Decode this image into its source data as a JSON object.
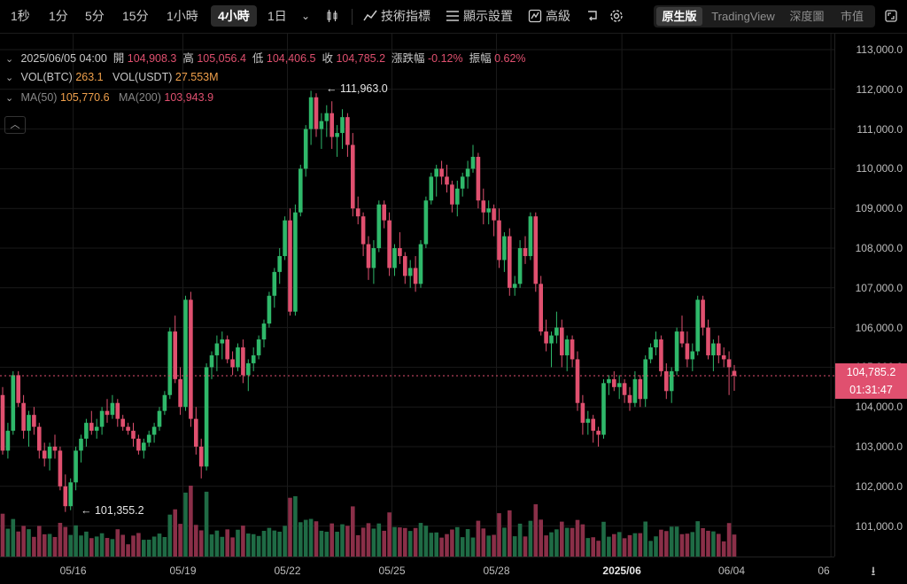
{
  "toolbar": {
    "intervals": [
      "1秒",
      "1分",
      "5分",
      "15分",
      "1小時",
      "4小時",
      "1日"
    ],
    "active_interval": "4小時",
    "indicators_label": "技術指標",
    "display_label": "顯示設置",
    "advanced_label": "高級",
    "views": [
      "原生版",
      "TradingView",
      "深度圖",
      "市值"
    ],
    "active_view": "原生版"
  },
  "legend": {
    "date": "2025/06/05 04:00",
    "open_label": "開",
    "open": "104,908.3",
    "high_label": "高",
    "high": "105,056.4",
    "low_label": "低",
    "low": "104,406.5",
    "close_label": "收",
    "close": "104,785.2",
    "change_label": "漲跌幅",
    "change": "-0.12%",
    "amplitude_label": "振幅",
    "amplitude": "0.62%",
    "vol_btc_label": "VOL(BTC)",
    "vol_btc": "263.1",
    "vol_usdt_label": "VOL(USDT)",
    "vol_usdt": "27.553M",
    "ma50_label": "MA(50)",
    "ma50": "105,770.6",
    "ma200_label": "MA(200)",
    "ma200": "103,943.9"
  },
  "annotations": {
    "high_marker": "111,963.0",
    "low_marker": "101,355.2"
  },
  "current_price": {
    "price": "104,785.2",
    "countdown": "01:31:47"
  },
  "colors": {
    "up": "#2fb86a",
    "down": "#e0506f",
    "background": "#000000",
    "grid": "#1a1a1a"
  },
  "chart_data": {
    "type": "candlestick",
    "y_ticks": [
      "113,000.0",
      "112,000.0",
      "111,000.0",
      "110,000.0",
      "109,000.0",
      "108,000.0",
      "107,000.0",
      "106,000.0",
      "105,000.0",
      "104,000.0",
      "103,000.0",
      "102,000.0",
      "101,000.0"
    ],
    "y_values": [
      113000,
      112000,
      111000,
      110000,
      109000,
      108000,
      107000,
      106000,
      105000,
      104000,
      103000,
      102000,
      101000
    ],
    "x_ticks": [
      {
        "label": "05/16",
        "index": 14,
        "bold": false
      },
      {
        "label": "05/19",
        "index": 35,
        "bold": false
      },
      {
        "label": "05/22",
        "index": 55,
        "bold": false
      },
      {
        "label": "05/25",
        "index": 75,
        "bold": false
      },
      {
        "label": "05/28",
        "index": 95,
        "bold": false
      },
      {
        "label": "2025/06",
        "index": 119,
        "bold": true
      },
      {
        "label": "06/04",
        "index": 140,
        "bold": false
      },
      {
        "label": "06",
        "index": 159,
        "bold": false
      }
    ],
    "ohlc": [
      [
        104300,
        104500,
        102800,
        102900
      ],
      [
        102900,
        103600,
        102700,
        103400
      ],
      [
        103400,
        104900,
        103300,
        104800
      ],
      [
        104800,
        104900,
        104000,
        104100
      ],
      [
        104100,
        104300,
        103200,
        103400
      ],
      [
        103400,
        103900,
        103000,
        103800
      ],
      [
        103800,
        104000,
        103300,
        103500
      ],
      [
        103500,
        103600,
        102700,
        102900
      ],
      [
        102900,
        103100,
        102500,
        102700
      ],
      [
        102700,
        103100,
        102400,
        103000
      ],
      [
        103000,
        103300,
        102700,
        102900
      ],
      [
        102900,
        103000,
        101900,
        102000
      ],
      [
        102000,
        102300,
        101355,
        101500
      ],
      [
        101500,
        102200,
        101400,
        102100
      ],
      [
        102100,
        103000,
        101900,
        102900
      ],
      [
        102900,
        103300,
        102600,
        103200
      ],
      [
        103200,
        103700,
        103000,
        103600
      ],
      [
        103600,
        103900,
        103300,
        103400
      ],
      [
        103400,
        103700,
        103200,
        103500
      ],
      [
        103500,
        104000,
        103300,
        103900
      ],
      [
        103900,
        104200,
        103600,
        103800
      ],
      [
        103800,
        104300,
        103700,
        104100
      ],
      [
        104100,
        104200,
        103500,
        103700
      ],
      [
        103700,
        103800,
        103400,
        103500
      ],
      [
        103500,
        103600,
        103300,
        103400
      ],
      [
        103400,
        103600,
        103000,
        103200
      ],
      [
        103200,
        103300,
        102800,
        102900
      ],
      [
        102900,
        103200,
        102700,
        103100
      ],
      [
        103100,
        103400,
        103000,
        103300
      ],
      [
        103300,
        103600,
        103100,
        103500
      ],
      [
        103500,
        104000,
        103400,
        103900
      ],
      [
        103900,
        104400,
        103800,
        104300
      ],
      [
        104300,
        106000,
        104200,
        105900
      ],
      [
        105900,
        106300,
        104600,
        104700
      ],
      [
        104700,
        105000,
        103800,
        104000
      ],
      [
        104000,
        106800,
        103900,
        106700
      ],
      [
        106700,
        106900,
        103500,
        103700
      ],
      [
        103700,
        104000,
        102800,
        103000
      ],
      [
        103000,
        103200,
        102200,
        102500
      ],
      [
        102500,
        105100,
        102400,
        105000
      ],
      [
        105000,
        105400,
        104700,
        105300
      ],
      [
        105300,
        105800,
        104900,
        105600
      ],
      [
        105600,
        105900,
        105200,
        105700
      ],
      [
        105700,
        105800,
        105100,
        105200
      ],
      [
        105200,
        105400,
        104800,
        105000
      ],
      [
        105000,
        105600,
        104900,
        105500
      ],
      [
        105500,
        105700,
        104600,
        104800
      ],
      [
        104800,
        105200,
        104400,
        105100
      ],
      [
        105100,
        105500,
        104900,
        105300
      ],
      [
        105300,
        105800,
        105200,
        105700
      ],
      [
        105700,
        106200,
        105500,
        106100
      ],
      [
        106100,
        106900,
        106000,
        106800
      ],
      [
        106800,
        107500,
        106500,
        107400
      ],
      [
        107400,
        108000,
        107100,
        107800
      ],
      [
        107800,
        108800,
        107700,
        108700
      ],
      [
        108700,
        109000,
        106300,
        106400
      ],
      [
        106400,
        109100,
        106300,
        108900
      ],
      [
        108900,
        110100,
        108800,
        110000
      ],
      [
        110000,
        111100,
        109800,
        111000
      ],
      [
        111000,
        111963,
        110600,
        111800
      ],
      [
        111800,
        111900,
        110800,
        111000
      ],
      [
        111000,
        111400,
        110500,
        111200
      ],
      [
        111200,
        111600,
        110800,
        111400
      ],
      [
        111400,
        111700,
        110500,
        110800
      ],
      [
        110800,
        111100,
        110300,
        110900
      ],
      [
        110900,
        111500,
        110500,
        111300
      ],
      [
        111300,
        111400,
        110300,
        110600
      ],
      [
        110600,
        110900,
        108800,
        109000
      ],
      [
        109000,
        109300,
        108600,
        108800
      ],
      [
        108800,
        108900,
        107800,
        108100
      ],
      [
        108100,
        108300,
        107200,
        107500
      ],
      [
        107500,
        108200,
        107100,
        108000
      ],
      [
        108000,
        109200,
        107900,
        109100
      ],
      [
        109100,
        109200,
        108500,
        108700
      ],
      [
        108700,
        108900,
        107300,
        107500
      ],
      [
        107500,
        108100,
        107300,
        108000
      ],
      [
        108000,
        108400,
        107600,
        107800
      ],
      [
        107800,
        107900,
        107100,
        107300
      ],
      [
        107300,
        107700,
        107000,
        107500
      ],
      [
        107500,
        107800,
        106900,
        107100
      ],
      [
        107100,
        108200,
        107000,
        108100
      ],
      [
        108100,
        109300,
        108000,
        109200
      ],
      [
        109200,
        109900,
        109100,
        109800
      ],
      [
        109800,
        110100,
        109300,
        110000
      ],
      [
        110000,
        110200,
        109600,
        109800
      ],
      [
        109800,
        110100,
        109400,
        109600
      ],
      [
        109600,
        109700,
        108900,
        109100
      ],
      [
        109100,
        109700,
        108800,
        109500
      ],
      [
        109500,
        109900,
        109300,
        109800
      ],
      [
        109800,
        110200,
        109500,
        110000
      ],
      [
        110000,
        110600,
        109900,
        110300
      ],
      [
        110300,
        110400,
        109000,
        109200
      ],
      [
        109200,
        109500,
        108600,
        108900
      ],
      [
        108900,
        109200,
        108600,
        109000
      ],
      [
        109000,
        109100,
        108300,
        108700
      ],
      [
        108700,
        109000,
        107500,
        107700
      ],
      [
        107700,
        108400,
        107400,
        108300
      ],
      [
        108300,
        108500,
        106800,
        107000
      ],
      [
        107000,
        107300,
        106800,
        107100
      ],
      [
        107100,
        108200,
        107000,
        108000
      ],
      [
        108000,
        108300,
        107600,
        107800
      ],
      [
        107800,
        108900,
        107700,
        108800
      ],
      [
        108800,
        108900,
        106900,
        107100
      ],
      [
        107100,
        107300,
        105800,
        105900
      ],
      [
        105900,
        106200,
        105400,
        105600
      ],
      [
        105600,
        105900,
        105000,
        105800
      ],
      [
        105800,
        106400,
        105600,
        106000
      ],
      [
        106000,
        106200,
        105000,
        105300
      ],
      [
        105300,
        105800,
        104900,
        105700
      ],
      [
        105700,
        105800,
        105000,
        105200
      ],
      [
        105200,
        105400,
        103900,
        104100
      ],
      [
        104100,
        104300,
        103300,
        103600
      ],
      [
        103600,
        103900,
        103300,
        103700
      ],
      [
        103700,
        103800,
        103100,
        103400
      ],
      [
        103400,
        103500,
        103000,
        103300
      ],
      [
        103300,
        104700,
        103200,
        104600
      ],
      [
        104600,
        104800,
        104300,
        104700
      ],
      [
        104700,
        104900,
        104400,
        104500
      ],
      [
        104500,
        104800,
        104200,
        104600
      ],
      [
        104600,
        104700,
        104100,
        104300
      ],
      [
        104300,
        104500,
        103900,
        104100
      ],
      [
        104100,
        104900,
        104000,
        104700
      ],
      [
        104700,
        104800,
        104000,
        104200
      ],
      [
        104200,
        105300,
        104000,
        105200
      ],
      [
        105200,
        105600,
        105100,
        105500
      ],
      [
        105500,
        105900,
        105300,
        105700
      ],
      [
        105700,
        105800,
        104800,
        104900
      ],
      [
        104900,
        105100,
        104200,
        104400
      ],
      [
        104400,
        105000,
        104100,
        104900
      ],
      [
        104900,
        106000,
        104800,
        105900
      ],
      [
        105900,
        106300,
        105500,
        105600
      ],
      [
        105600,
        105900,
        105000,
        105200
      ],
      [
        105200,
        105600,
        104900,
        105400
      ],
      [
        105400,
        106800,
        105300,
        106700
      ],
      [
        106700,
        106800,
        105800,
        106000
      ],
      [
        106000,
        106200,
        105200,
        105300
      ],
      [
        105300,
        105700,
        104900,
        105600
      ],
      [
        105600,
        105800,
        105100,
        105300
      ],
      [
        105300,
        105500,
        105000,
        105200
      ],
      [
        105200,
        105400,
        104300,
        105000
      ],
      [
        104908.3,
        105056.4,
        104406.5,
        104785.2
      ]
    ],
    "volume_direction_note": "volume bars follow candle color"
  }
}
